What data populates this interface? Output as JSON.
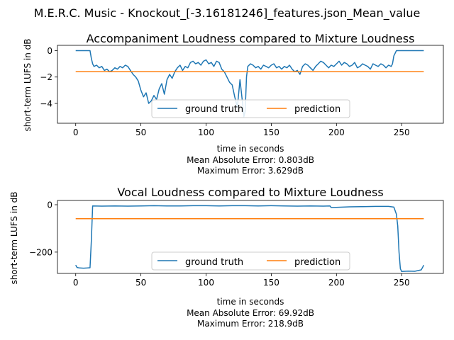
{
  "figure": {
    "suptitle": "M.E.R.C. Music - Knockout_[-3.16181246]_features.json_Mean_value"
  },
  "colors": {
    "ground_truth": "#1f77b4",
    "prediction": "#ff7f0e"
  },
  "chart_data": [
    {
      "type": "line",
      "title": "Accompaniment Loudness compared to Mixture Loudness",
      "xlabel": "time in seconds",
      "ylabel": "short-term LUFS in dB",
      "metrics": [
        "Mean Absolute Error: 0.803dB",
        "Maximum Error: 3.629dB"
      ],
      "xlim": [
        -14,
        282
      ],
      "ylim": [
        -5.5,
        0.4
      ],
      "xticks": [
        0,
        50,
        100,
        150,
        200,
        250
      ],
      "yticks": [
        0,
        -2,
        -4
      ],
      "grid": false,
      "legend": {
        "position": "lower-center",
        "columns": 2,
        "entries": [
          "ground truth",
          "prediction"
        ]
      },
      "series": [
        {
          "name": "ground truth",
          "x": [
            0,
            5,
            10,
            11,
            12,
            13,
            14,
            16,
            18,
            20,
            22,
            24,
            26,
            28,
            30,
            32,
            34,
            36,
            38,
            40,
            42,
            44,
            46,
            48,
            50,
            52,
            54,
            56,
            58,
            60,
            62,
            64,
            66,
            68,
            70,
            72,
            74,
            76,
            78,
            80,
            82,
            84,
            86,
            88,
            90,
            92,
            94,
            96,
            98,
            100,
            102,
            104,
            106,
            108,
            110,
            112,
            114,
            116,
            118,
            120,
            122,
            124,
            126,
            128,
            129,
            130,
            131,
            132,
            134,
            136,
            138,
            140,
            142,
            144,
            146,
            148,
            150,
            152,
            154,
            156,
            158,
            160,
            162,
            164,
            166,
            168,
            170,
            172,
            174,
            176,
            178,
            180,
            182,
            184,
            186,
            188,
            190,
            192,
            194,
            196,
            198,
            200,
            202,
            204,
            206,
            208,
            210,
            212,
            214,
            216,
            218,
            220,
            222,
            224,
            226,
            228,
            230,
            232,
            234,
            236,
            238,
            240,
            242,
            243,
            244,
            246,
            250,
            255,
            260,
            265,
            267
          ],
          "y": [
            0,
            0,
            0,
            0,
            -0.6,
            -1.0,
            -1.2,
            -1.1,
            -1.3,
            -1.2,
            -1.5,
            -1.4,
            -1.6,
            -1.5,
            -1.3,
            -1.4,
            -1.2,
            -1.3,
            -1.1,
            -1.2,
            -1.5,
            -1.8,
            -2.0,
            -2.3,
            -3.0,
            -3.5,
            -3.2,
            -4.0,
            -3.8,
            -3.4,
            -3.7,
            -2.9,
            -2.5,
            -3.3,
            -2.2,
            -1.8,
            -2.1,
            -1.6,
            -1.3,
            -1.1,
            -1.5,
            -1.2,
            -1.3,
            -0.9,
            -0.8,
            -1.0,
            -0.9,
            -1.1,
            -0.8,
            -0.7,
            -1.0,
            -0.9,
            -1.2,
            -0.8,
            -0.9,
            -1.4,
            -1.6,
            -2.0,
            -2.4,
            -2.6,
            -3.5,
            -4.3,
            -2.2,
            -4.0,
            -5.0,
            -4.6,
            -2.0,
            -1.2,
            -1.0,
            -1.1,
            -1.3,
            -1.2,
            -1.4,
            -1.1,
            -1.2,
            -1.3,
            -1.1,
            -1.0,
            -1.3,
            -1.2,
            -1.4,
            -1.2,
            -1.3,
            -1.1,
            -1.4,
            -1.6,
            -1.5,
            -1.8,
            -1.2,
            -1.0,
            -1.1,
            -1.3,
            -1.5,
            -1.2,
            -1.0,
            -0.8,
            -0.9,
            -1.1,
            -1.3,
            -1.1,
            -1.2,
            -1.0,
            -0.8,
            -1.1,
            -0.9,
            -1.0,
            -1.2,
            -1.1,
            -0.9,
            -1.3,
            -1.2,
            -1.0,
            -1.1,
            -1.2,
            -1.4,
            -1.0,
            -1.1,
            -1.2,
            -1.0,
            -1.1,
            -1.3,
            -1.1,
            -1.2,
            -1.0,
            -0.4,
            0,
            0,
            0,
            0,
            0,
            0
          ]
        },
        {
          "name": "prediction",
          "x": [
            0,
            267
          ],
          "y": [
            -1.6,
            -1.6
          ]
        }
      ]
    },
    {
      "type": "line",
      "title": "Vocal Loudness compared to Mixture Loudness",
      "xlabel": "time in seconds",
      "ylabel": "short-term LUFS in dB",
      "metrics": [
        "Mean Absolute Error: 69.92dB",
        "Maximum Error: 218.9dB"
      ],
      "xlim": [
        -14,
        282
      ],
      "ylim": [
        -290,
        18
      ],
      "xticks": [
        0,
        50,
        100,
        150,
        200,
        250
      ],
      "yticks": [
        0,
        -200
      ],
      "grid": false,
      "legend": {
        "position": "lower-center",
        "columns": 2,
        "entries": [
          "ground truth",
          "prediction"
        ]
      },
      "series": [
        {
          "name": "ground truth",
          "x": [
            0,
            1,
            3,
            6,
            9,
            11,
            12,
            13,
            20,
            30,
            40,
            50,
            60,
            70,
            80,
            90,
            100,
            110,
            120,
            130,
            140,
            150,
            160,
            170,
            180,
            190,
            195,
            196,
            200,
            210,
            220,
            230,
            240,
            244,
            245,
            246,
            247,
            248,
            249,
            250,
            255,
            260,
            265,
            267
          ],
          "y": [
            -255,
            -265,
            -267,
            -268,
            -267,
            -266,
            -150,
            -5,
            -6,
            -5,
            -6,
            -5,
            -4,
            -5,
            -5,
            -4,
            -4,
            -5,
            -4,
            -4,
            -5,
            -4,
            -5,
            -6,
            -5,
            -6,
            -5,
            -12,
            -11,
            -9,
            -8,
            -7,
            -7,
            -10,
            -25,
            -40,
            -90,
            -200,
            -270,
            -282,
            -280,
            -281,
            -275,
            -255
          ]
        },
        {
          "name": "prediction",
          "x": [
            0,
            267
          ],
          "y": [
            -59,
            -59
          ]
        }
      ]
    }
  ]
}
